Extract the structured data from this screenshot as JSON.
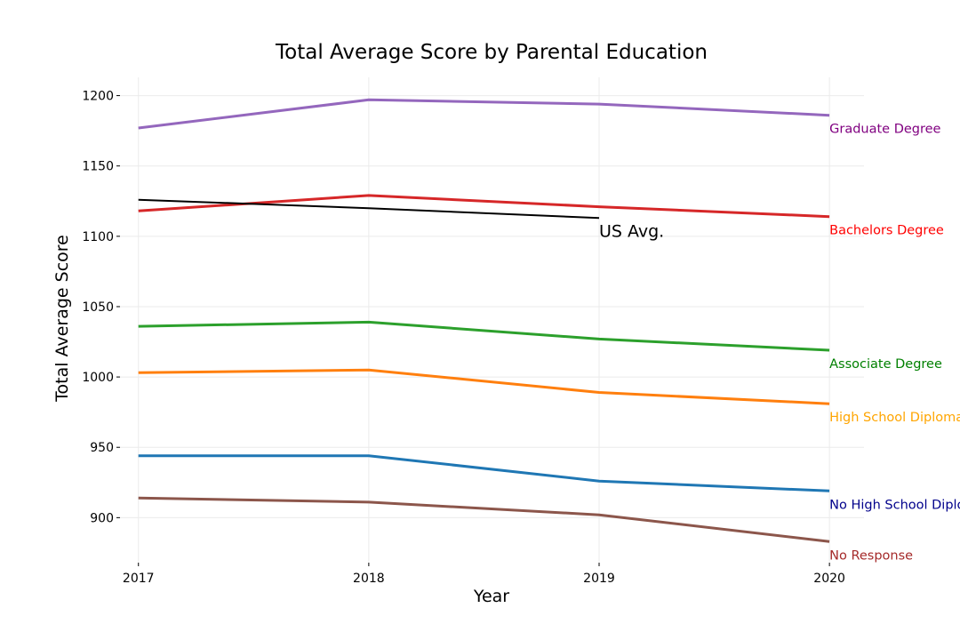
{
  "chart_data": {
    "type": "line",
    "title": "Total Average Score by Parental Education",
    "xlabel": "Year",
    "ylabel": "Total Average Score",
    "x": [
      2017,
      2018,
      2019,
      2020
    ],
    "x_ticks": [
      "2017",
      "2018",
      "2019",
      "2020"
    ],
    "y_ticks": [
      "900",
      "950",
      "1000",
      "1050",
      "1100",
      "1150",
      "1200"
    ],
    "y_tick_values": [
      900,
      950,
      1000,
      1050,
      1100,
      1150,
      1200
    ],
    "xlim": [
      2016.92,
      2020.15
    ],
    "ylim": [
      868,
      1213
    ],
    "grid": true,
    "legend": "direct labels at line ends",
    "series": [
      {
        "name": "Graduate Degree",
        "values": [
          1177,
          1197,
          1194,
          1186
        ],
        "color": "#9467bd",
        "label_color": "#800080"
      },
      {
        "name": "Bachelors Degree",
        "values": [
          1118,
          1129,
          1121,
          1114
        ],
        "color": "#d62728",
        "label_color": "#ff0000"
      },
      {
        "name": "Associate Degree",
        "values": [
          1036,
          1039,
          1027,
          1019
        ],
        "color": "#2ca02c",
        "label_color": "#008000"
      },
      {
        "name": "High School Diploma",
        "values": [
          1003,
          1005,
          989,
          981
        ],
        "color": "#ff7f0e",
        "label_color": "#ffa500"
      },
      {
        "name": "No High School Diploma",
        "values": [
          944,
          944,
          926,
          919
        ],
        "color": "#1f77b4",
        "label_color": "#00008b"
      },
      {
        "name": "No Response",
        "values": [
          914,
          911,
          902,
          883
        ],
        "color": "#8c564b",
        "label_color": "#a52a2a"
      }
    ],
    "us_average": {
      "label": "US Avg.",
      "x": [
        2017,
        2018,
        2019
      ],
      "values": [
        1126,
        1120,
        1113
      ],
      "color": "#000000"
    }
  }
}
